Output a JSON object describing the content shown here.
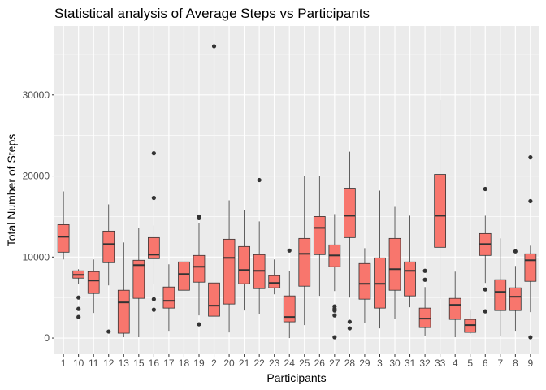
{
  "chart_data": {
    "type": "boxplot",
    "title": "Statistical analysis of Average Steps vs Participants",
    "xlabel": "Participants",
    "ylabel": "Total Number of Steps",
    "ylim": [
      -2000,
      38500
    ],
    "yticks": [
      0,
      10000,
      20000,
      30000
    ],
    "grid": true,
    "colors": {
      "box_fill": "#F8766D",
      "panel_bg": "#EBEBEB",
      "grid": "#FFFFFF",
      "line": "#333333",
      "tick_text": "#4D4D4D"
    },
    "categories": [
      "1",
      "10",
      "11",
      "12",
      "13",
      "15",
      "16",
      "17",
      "18",
      "19",
      "2",
      "20",
      "21",
      "22",
      "23",
      "24",
      "25",
      "26",
      "27",
      "28",
      "29",
      "3",
      "30",
      "31",
      "32",
      "33",
      "4",
      "5",
      "6",
      "7",
      "8",
      "9"
    ],
    "boxes": [
      {
        "category": "1",
        "min": 9700,
        "q1": 10600,
        "median": 12500,
        "q3": 14000,
        "max": 18100,
        "outliers": []
      },
      {
        "category": "10",
        "min": 6700,
        "q1": 7400,
        "median": 7800,
        "q3": 8300,
        "max": 8500,
        "outliers": [
          5000,
          3600,
          2600
        ]
      },
      {
        "category": "11",
        "min": 3100,
        "q1": 5500,
        "median": 7100,
        "q3": 8200,
        "max": 9700,
        "outliers": []
      },
      {
        "category": "12",
        "min": 6500,
        "q1": 9300,
        "median": 11600,
        "q3": 13200,
        "max": 16500,
        "outliers": [
          800
        ]
      },
      {
        "category": "13",
        "min": 100,
        "q1": 600,
        "median": 4400,
        "q3": 5900,
        "max": 11800,
        "outliers": []
      },
      {
        "category": "15",
        "min": 100,
        "q1": 4900,
        "median": 9000,
        "q3": 9600,
        "max": 13600,
        "outliers": []
      },
      {
        "category": "16",
        "min": 6600,
        "q1": 9800,
        "median": 10300,
        "q3": 12400,
        "max": 13900,
        "outliers": [
          22800,
          17300,
          4800,
          3500
        ]
      },
      {
        "category": "17",
        "min": 900,
        "q1": 3700,
        "median": 4600,
        "q3": 6300,
        "max": 9100,
        "outliers": []
      },
      {
        "category": "18",
        "min": 3200,
        "q1": 5900,
        "median": 7900,
        "q3": 9400,
        "max": 13700,
        "outliers": []
      },
      {
        "category": "19",
        "min": 2800,
        "q1": 6900,
        "median": 8800,
        "q3": 10200,
        "max": 14200,
        "outliers": [
          15000,
          14800,
          1700
        ]
      },
      {
        "category": "2",
        "min": 1600,
        "q1": 2700,
        "median": 4000,
        "q3": 6800,
        "max": 10500,
        "outliers": [
          36000
        ]
      },
      {
        "category": "20",
        "min": 700,
        "q1": 4200,
        "median": 9900,
        "q3": 12200,
        "max": 17000,
        "outliers": []
      },
      {
        "category": "21",
        "min": 3400,
        "q1": 6700,
        "median": 8400,
        "q3": 11300,
        "max": 15800,
        "outliers": []
      },
      {
        "category": "22",
        "min": 3000,
        "q1": 6100,
        "median": 8300,
        "q3": 10300,
        "max": 14400,
        "outliers": [
          19500
        ]
      },
      {
        "category": "23",
        "min": 5400,
        "q1": 6200,
        "median": 6800,
        "q3": 7700,
        "max": 9700,
        "outliers": []
      },
      {
        "category": "24",
        "min": 0,
        "q1": 2000,
        "median": 2600,
        "q3": 5200,
        "max": 8300,
        "outliers": [
          10800
        ]
      },
      {
        "category": "25",
        "min": 1600,
        "q1": 6400,
        "median": 10400,
        "q3": 12300,
        "max": 20000,
        "outliers": []
      },
      {
        "category": "26",
        "min": 5200,
        "q1": 10300,
        "median": 13600,
        "q3": 15000,
        "max": 20000,
        "outliers": []
      },
      {
        "category": "27",
        "min": 5800,
        "q1": 8800,
        "median": 10200,
        "q3": 11500,
        "max": 15300,
        "outliers": [
          3900,
          3600,
          3400,
          2800,
          100
        ]
      },
      {
        "category": "28",
        "min": 5000,
        "q1": 12400,
        "median": 15100,
        "q3": 18500,
        "max": 23000,
        "outliers": [
          2000,
          1200
        ]
      },
      {
        "category": "29",
        "min": 1900,
        "q1": 4800,
        "median": 6700,
        "q3": 9200,
        "max": 11100,
        "outliers": []
      },
      {
        "category": "3",
        "min": 1200,
        "q1": 3700,
        "median": 6700,
        "q3": 9900,
        "max": 18200,
        "outliers": []
      },
      {
        "category": "30",
        "min": 2400,
        "q1": 5900,
        "median": 8500,
        "q3": 12300,
        "max": 16200,
        "outliers": []
      },
      {
        "category": "31",
        "min": 3800,
        "q1": 5200,
        "median": 8300,
        "q3": 9400,
        "max": 15100,
        "outliers": []
      },
      {
        "category": "32",
        "min": 300,
        "q1": 1300,
        "median": 2400,
        "q3": 3700,
        "max": 6300,
        "outliers": [
          8300,
          7200
        ]
      },
      {
        "category": "33",
        "min": 4800,
        "q1": 11200,
        "median": 15100,
        "q3": 20200,
        "max": 29400,
        "outliers": []
      },
      {
        "category": "4",
        "min": 100,
        "q1": 2300,
        "median": 4100,
        "q3": 4900,
        "max": 8200,
        "outliers": []
      },
      {
        "category": "5",
        "min": 500,
        "q1": 700,
        "median": 1600,
        "q3": 2300,
        "max": 3400,
        "outliers": []
      },
      {
        "category": "6",
        "min": 6800,
        "q1": 10200,
        "median": 11600,
        "q3": 12900,
        "max": 15100,
        "outliers": [
          18400,
          6000,
          3300
        ]
      },
      {
        "category": "7",
        "min": 300,
        "q1": 3400,
        "median": 5700,
        "q3": 7200,
        "max": 12300,
        "outliers": []
      },
      {
        "category": "8",
        "min": 900,
        "q1": 3400,
        "median": 5100,
        "q3": 6200,
        "max": 8900,
        "outliers": [
          10700
        ]
      },
      {
        "category": "9",
        "min": 3200,
        "q1": 7000,
        "median": 9600,
        "q3": 10400,
        "max": 11400,
        "outliers": [
          22300,
          16900,
          100
        ]
      }
    ]
  }
}
